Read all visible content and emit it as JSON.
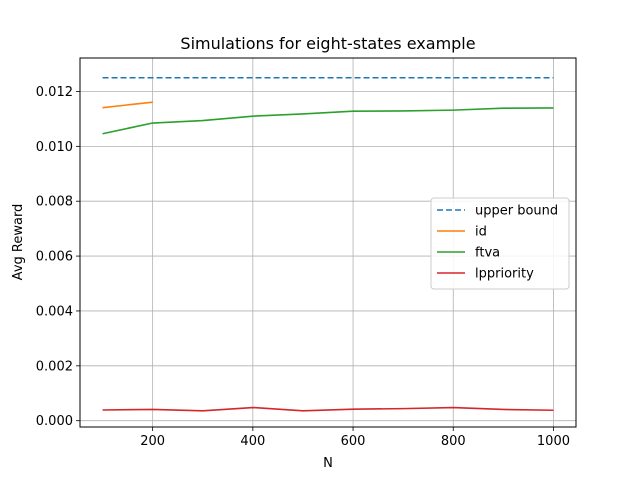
{
  "chart_data": {
    "type": "line",
    "title": "Simulations for eight-states example",
    "xlabel": "N",
    "ylabel": "Avg Reward",
    "xlim": [
      55,
      1045
    ],
    "ylim": [
      -0.00023,
      0.01322
    ],
    "xticks": [
      200,
      400,
      600,
      800,
      1000
    ],
    "xtick_labels": [
      "200",
      "400",
      "600",
      "800",
      "1000"
    ],
    "yticks": [
      0.0,
      0.002,
      0.004,
      0.006,
      0.008,
      0.01,
      0.012
    ],
    "ytick_labels": [
      "0.000",
      "0.002",
      "0.004",
      "0.006",
      "0.008",
      "0.010",
      "0.012"
    ],
    "grid": true,
    "legend_position": "center-right",
    "series": [
      {
        "name": "upper bound",
        "color": "#1f77b4",
        "dashed": true,
        "x": [
          100,
          1000
        ],
        "y": [
          0.0125,
          0.0125
        ]
      },
      {
        "name": "id",
        "color": "#ff7f0e",
        "dashed": false,
        "x": [
          100,
          200
        ],
        "y": [
          0.01141,
          0.01161
        ]
      },
      {
        "name": "ftva",
        "color": "#2ca02c",
        "dashed": false,
        "x": [
          100,
          200,
          300,
          400,
          500,
          600,
          700,
          800,
          900,
          1000
        ],
        "y": [
          0.01046,
          0.01085,
          0.01094,
          0.0111,
          0.01118,
          0.01128,
          0.01129,
          0.01132,
          0.01139,
          0.0114
        ]
      },
      {
        "name": "lppriority",
        "color": "#d62728",
        "dashed": false,
        "x": [
          100,
          200,
          300,
          400,
          500,
          600,
          700,
          800,
          900,
          1000
        ],
        "y": [
          0.00039,
          0.00041,
          0.00036,
          0.00048,
          0.00036,
          0.00042,
          0.00044,
          0.00048,
          0.00041,
          0.00038
        ]
      }
    ]
  }
}
